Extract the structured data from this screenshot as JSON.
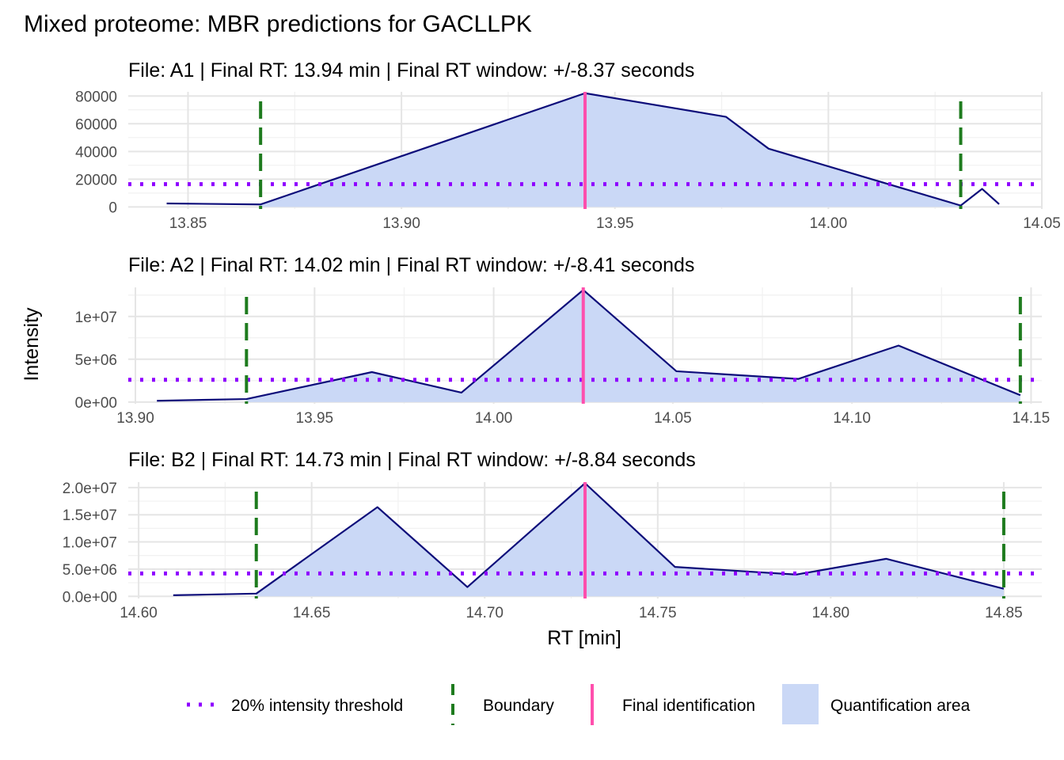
{
  "chart_data": {
    "type": "area",
    "title": "Mixed proteome: MBR predictions for GACLLPK",
    "xlabel": "RT [min]",
    "ylabel": "Intensity",
    "grid": true,
    "legend_position": "bottom",
    "colors": {
      "line": "#0d0d7a",
      "area": "#cad8f6",
      "boundary": "#1e7b1e",
      "identification": "#ff4fad",
      "threshold": "#8f00ff",
      "grid_major": "#e5e5e5",
      "grid_minor": "#f1f1f1"
    },
    "legend": [
      {
        "key": "threshold",
        "label": "20% intensity threshold"
      },
      {
        "key": "boundary",
        "label": "Boundary"
      },
      {
        "key": "identification",
        "label": "Final identification"
      },
      {
        "key": "area",
        "label": "Quantification area"
      }
    ],
    "panels": [
      {
        "subtitle": "File: A1 | Final RT: 13.94 min | Final RT window: +/-8.37 seconds",
        "xlim": [
          13.836,
          14.05
        ],
        "ylim": [
          -1500,
          83000
        ],
        "xticks": [
          13.85,
          13.9,
          13.95,
          14.0,
          14.05
        ],
        "xtick_labels": [
          "13.85",
          "13.90",
          "13.95",
          "14.00",
          "14.05"
        ],
        "yticks": [
          0,
          20000,
          40000,
          60000,
          80000
        ],
        "ytick_labels": [
          "0",
          "20000",
          "40000",
          "60000",
          "80000"
        ],
        "x": [
          13.845,
          13.867,
          13.943,
          13.976,
          13.986,
          14.031,
          14.036,
          14.04
        ],
        "y": [
          2500,
          1800,
          82000,
          65000,
          42000,
          1000,
          13000,
          2000
        ],
        "boundaries": [
          13.867,
          14.031
        ],
        "identification": 13.943,
        "threshold": 16400
      },
      {
        "subtitle": "File: A2 | Final RT: 14.02 min | Final RT window: +/-8.41 seconds",
        "xlim": [
          13.898,
          14.153
        ],
        "ylim": [
          -200000,
          13400000
        ],
        "xticks": [
          13.9,
          13.95,
          14.0,
          14.05,
          14.1,
          14.15
        ],
        "xtick_labels": [
          "13.90",
          "13.95",
          "14.00",
          "14.05",
          "14.10",
          "14.15"
        ],
        "yticks": [
          0,
          5000000,
          10000000
        ],
        "ytick_labels": [
          "0e+00",
          "5e+06",
          "1e+07"
        ],
        "x": [
          13.906,
          13.931,
          13.966,
          13.991,
          14.025,
          14.051,
          14.085,
          14.113,
          14.147
        ],
        "y": [
          150000,
          350000,
          3500000,
          1100000,
          13100000,
          3600000,
          2700000,
          6600000,
          800000
        ],
        "boundaries": [
          13.931,
          14.147
        ],
        "identification": 14.025,
        "threshold": 2600000
      },
      {
        "subtitle": "File: B2 | Final RT: 14.73 min | Final RT window: +/-8.84 seconds",
        "xlim": [
          14.597,
          14.861
        ],
        "ylim": [
          -400000,
          21000000
        ],
        "xticks": [
          14.6,
          14.65,
          14.7,
          14.75,
          14.8,
          14.85
        ],
        "xtick_labels": [
          "14.60",
          "14.65",
          "14.70",
          "14.75",
          "14.80",
          "14.85"
        ],
        "yticks": [
          0,
          5000000,
          10000000,
          15000000,
          20000000
        ],
        "ytick_labels": [
          "0.0e+00",
          "5.0e+06",
          "1.0e+07",
          "1.5e+07",
          "2.0e+07"
        ],
        "x": [
          14.61,
          14.634,
          14.669,
          14.695,
          14.729,
          14.755,
          14.79,
          14.816,
          14.85
        ],
        "y": [
          200000,
          500000,
          16400000,
          1700000,
          20800000,
          5400000,
          4000000,
          6900000,
          1400000
        ],
        "boundaries": [
          14.634,
          14.85
        ],
        "identification": 14.729,
        "threshold": 4200000
      }
    ]
  }
}
